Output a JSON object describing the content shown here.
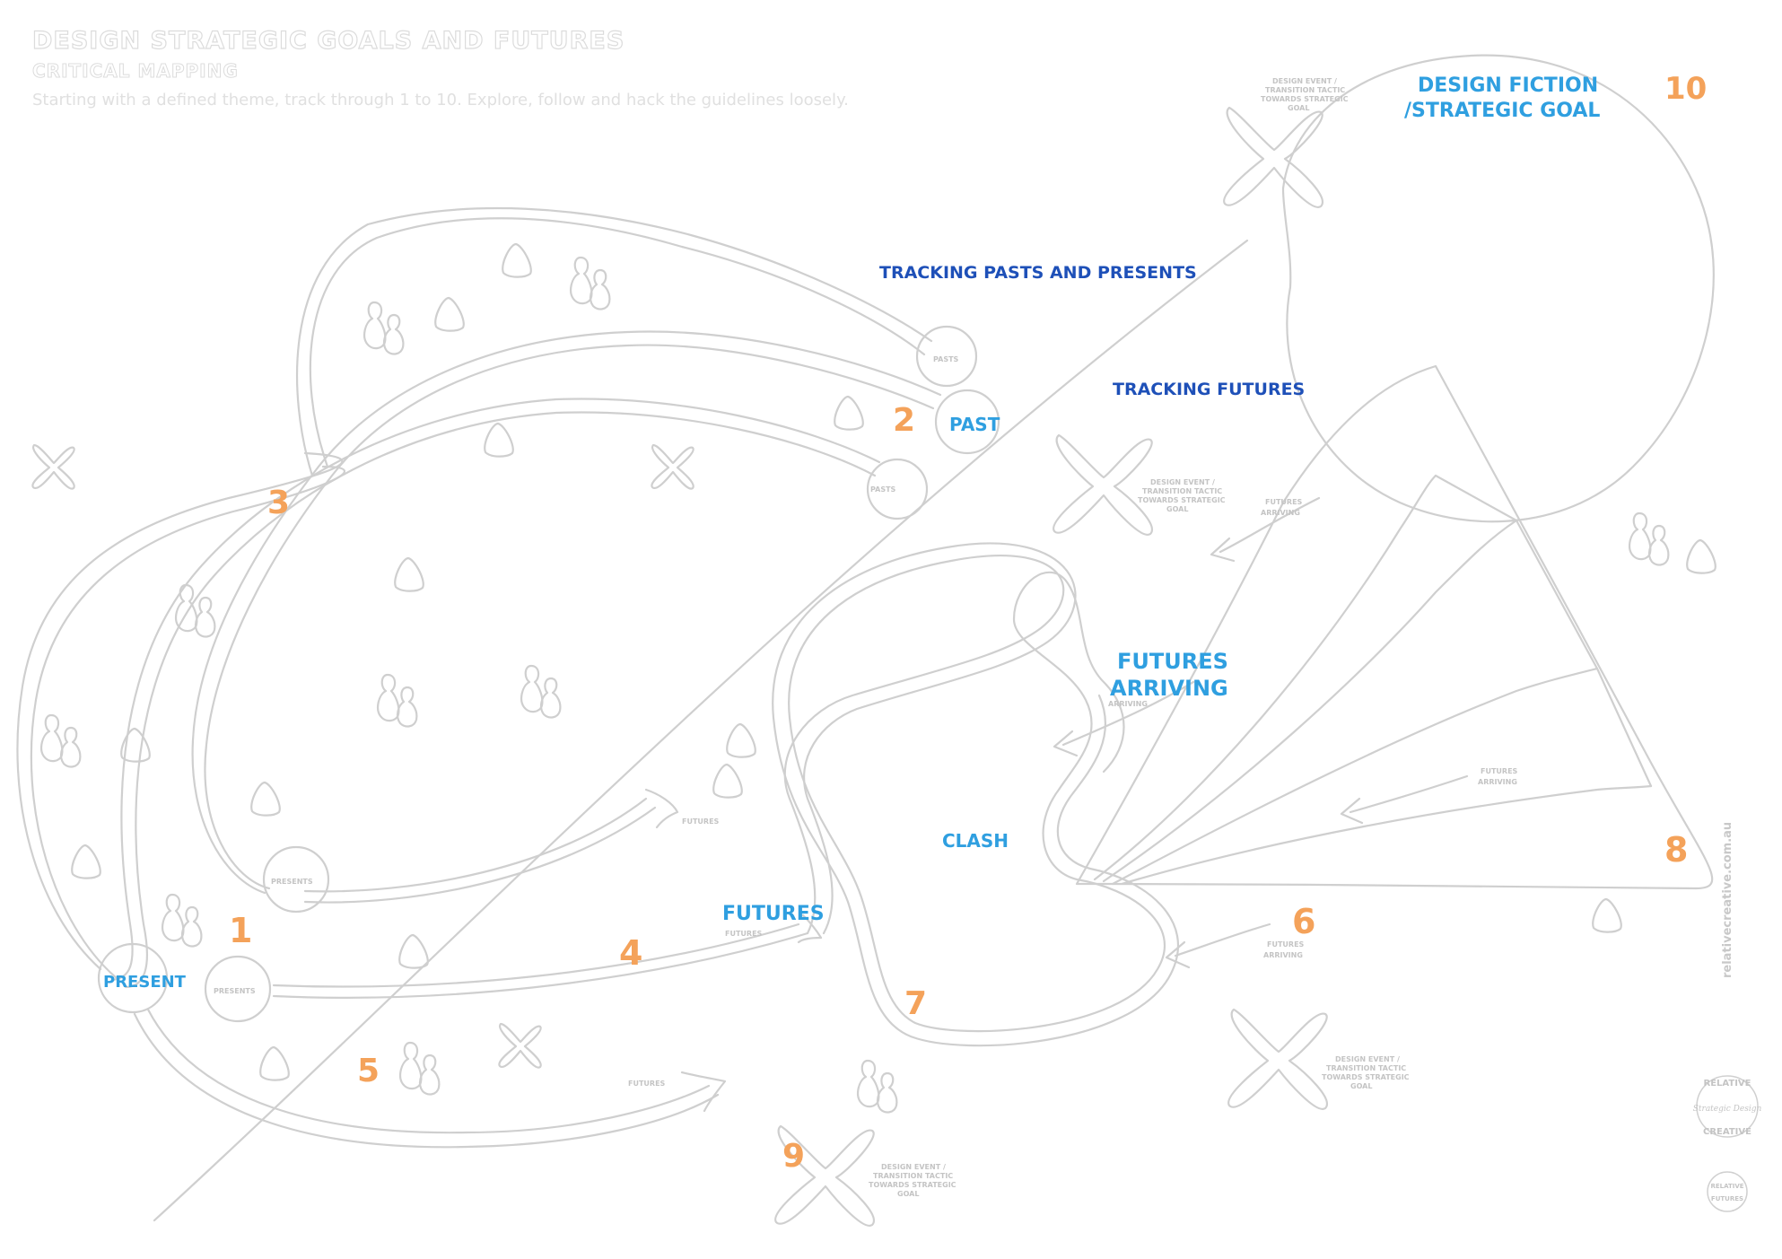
{
  "header": {
    "title": "DESIGN STRATEGIC GOALS AND FUTURES",
    "subtitle": "CRITICAL MAPPING",
    "instructions": "Starting with a defined theme, track through 1 to 10. Explore, follow and hack the guidelines loosely."
  },
  "annotations": {
    "design_fiction_line1": "DESIGN FICTION",
    "design_fiction_line2": "/STRATEGIC GOAL",
    "tracking_pasts": "TRACKING PASTS AND PRESENTS",
    "tracking_futures": "TRACKING FUTURES",
    "past": "PAST",
    "present": "PRESENT",
    "futures_arriving_line1": "FUTURES",
    "futures_arriving_line2": "ARRIVING",
    "clash": "CLASH",
    "futures": "FUTURES"
  },
  "step_numbers": [
    "1",
    "2",
    "3",
    "4",
    "5",
    "6",
    "7",
    "8",
    "9",
    "10"
  ],
  "node_labels": {
    "pasts": "PASTS",
    "presents": "PRESENTS",
    "futures": "FUTURES",
    "futures_arriving_1": "FUTURES",
    "futures_arriving_2": "ARRIVING",
    "arriving": "ARRIVING"
  },
  "design_event_label": {
    "line1": "DESIGN EVENT /",
    "line2": "TRANSITION TACTIC",
    "line3": "TOWARDS STRATEGIC",
    "line4": "GOAL"
  },
  "branding": {
    "website": "relativecreative.com.au",
    "logo_top": "RELATIVE",
    "logo_mid": "Strategic Design",
    "logo_bottom": "CREATIVE",
    "logo2_line1": "RELATIVE",
    "logo2_line2": "FUTURES"
  },
  "colors": {
    "step_number": "#f4a25a",
    "label_blue": "#2f9fe0",
    "label_dark_blue": "#1e50b8",
    "sketch_line": "#cfcfcf"
  },
  "icons": [
    "x-cross-icon",
    "triangle-icon",
    "person-pair-icon",
    "arrow-icon",
    "circle-node-icon"
  ]
}
